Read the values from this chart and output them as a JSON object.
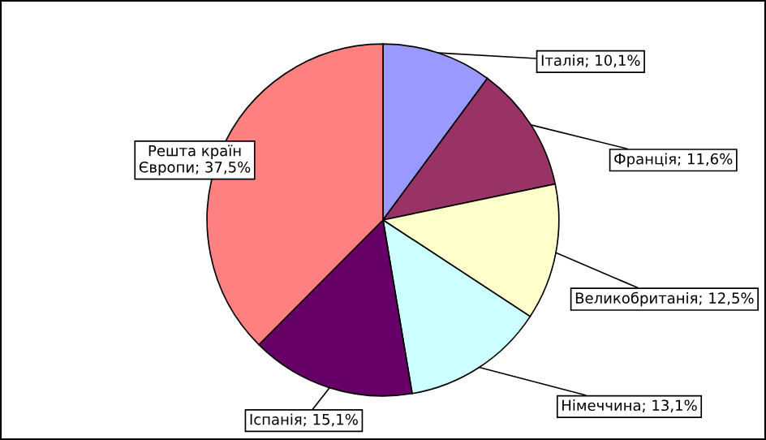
{
  "chart_data": {
    "type": "pie",
    "categories": [
      "Італія",
      "Франція",
      "Великобританія",
      "Німеччина",
      "Іспанія",
      "Решта країн Європи"
    ],
    "values": [
      10.1,
      11.6,
      12.5,
      13.1,
      15.1,
      37.5
    ],
    "value_labels": [
      "10,1%",
      "11,6%",
      "12,5%",
      "13,1%",
      "15,1%",
      "37,5%"
    ],
    "colors": [
      "#9999ff",
      "#993366",
      "#ffffcc",
      "#ccffff",
      "#660066",
      "#ff8080"
    ],
    "legend": false
  }
}
